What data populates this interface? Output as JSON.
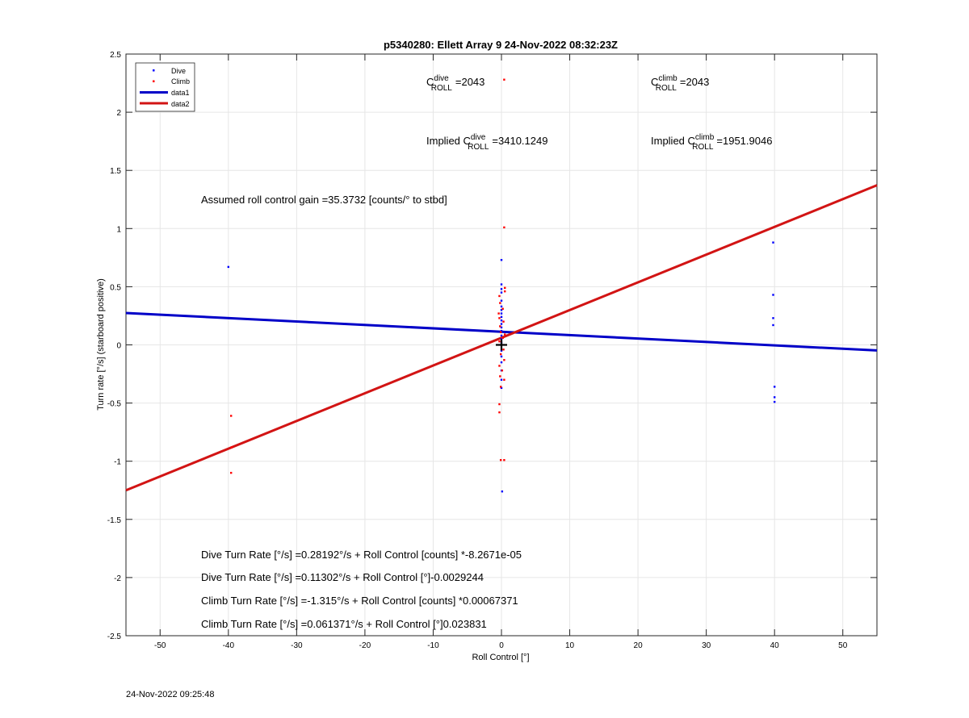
{
  "figure": {
    "timestamp": "24-Nov-2022 09:25:48"
  },
  "chart_data": {
    "type": "scatter",
    "title": "p5340280: Ellett Array 9 24-Nov-2022 08:32:23Z",
    "xlabel": "Roll Control [°]",
    "ylabel": "Turn rate [°/s] (starboard positive)",
    "xlim": [
      -55,
      55
    ],
    "ylim": [
      -2.5,
      2.5
    ],
    "xticks": [
      "-50",
      "-40",
      "-30",
      "-20",
      "-10",
      "0",
      "10",
      "20",
      "30",
      "40",
      "50"
    ],
    "xtick_values": [
      -50,
      -40,
      -30,
      -20,
      -10,
      0,
      10,
      20,
      30,
      40,
      50
    ],
    "yticks": [
      "-2.5",
      "-2",
      "-1.5",
      "-1",
      "-0.5",
      "0",
      "0.5",
      "1",
      "1.5",
      "2",
      "2.5"
    ],
    "ytick_values": [
      -2.5,
      -2,
      -1.5,
      -1,
      -0.5,
      0,
      0.5,
      1,
      1.5,
      2,
      2.5
    ],
    "grid": true,
    "legend_position": "top-left",
    "series": [
      {
        "name": "Dive",
        "kind": "points",
        "color": "#0000ff",
        "points": [
          [
            -40,
            0.67
          ],
          [
            0,
            0.73
          ],
          [
            0,
            0.52
          ],
          [
            0,
            0.48
          ],
          [
            0,
            0.45
          ],
          [
            0,
            0.38
          ],
          [
            0,
            0.33
          ],
          [
            0,
            0.3
          ],
          [
            0,
            0.27
          ],
          [
            0,
            0.24
          ],
          [
            0,
            0.21
          ],
          [
            0,
            0.18
          ],
          [
            0,
            0.15
          ],
          [
            0,
            0.12
          ],
          [
            0,
            0.08
          ],
          [
            0,
            0.05
          ],
          [
            0,
            0.02
          ],
          [
            0,
            -0.05
          ],
          [
            0,
            -0.1
          ],
          [
            0,
            -0.15
          ],
          [
            0,
            -0.22
          ],
          [
            0,
            -0.3
          ],
          [
            0,
            -0.37
          ],
          [
            0.1,
            -1.26
          ],
          [
            39.8,
            0.88
          ],
          [
            39.8,
            0.43
          ],
          [
            39.8,
            0.23
          ],
          [
            39.8,
            0.17
          ],
          [
            40,
            -0.36
          ],
          [
            40,
            -0.45
          ],
          [
            40,
            -0.49
          ]
        ]
      },
      {
        "name": "Climb",
        "kind": "points",
        "color": "#ff0000",
        "points": [
          [
            0.4,
            2.28
          ],
          [
            0.4,
            1.01
          ],
          [
            0.5,
            0.49
          ],
          [
            0.5,
            0.46
          ],
          [
            -0.3,
            0.42
          ],
          [
            -0.2,
            0.36
          ],
          [
            0.2,
            0.31
          ],
          [
            -0.4,
            0.27
          ],
          [
            -0.3,
            0.23
          ],
          [
            0.3,
            0.2
          ],
          [
            -0.2,
            0.16
          ],
          [
            -0.1,
            0.11
          ],
          [
            0.5,
            0.09
          ],
          [
            0.2,
            0.06
          ],
          [
            -0.3,
            0.03
          ],
          [
            0.3,
            -0.04
          ],
          [
            -0.1,
            -0.08
          ],
          [
            0.4,
            -0.13
          ],
          [
            -0.3,
            -0.18
          ],
          [
            0.1,
            -0.22
          ],
          [
            -0.2,
            -0.27
          ],
          [
            0.4,
            -0.3
          ],
          [
            -0.1,
            -0.36
          ],
          [
            -0.3,
            -0.51
          ],
          [
            -0.3,
            -0.58
          ],
          [
            -0.1,
            -0.99
          ],
          [
            0.4,
            -0.99
          ],
          [
            -39.6,
            -0.61
          ],
          [
            -39.5,
            -0.88
          ],
          [
            -39.6,
            -1.1
          ]
        ]
      },
      {
        "name": "data1",
        "kind": "line",
        "color": "#0000c8",
        "points": [
          [
            -55,
            0.274
          ],
          [
            55,
            -0.048
          ]
        ]
      },
      {
        "name": "data2",
        "kind": "line",
        "color": "#d21414",
        "points": [
          [
            -55,
            -1.25
          ],
          [
            55,
            1.372
          ]
        ]
      }
    ],
    "marker": {
      "x": 0,
      "y": 0
    },
    "annotations": {
      "c_dive": {
        "base": "C",
        "sup": "dive",
        "sub": "ROLL",
        "value": "=2043"
      },
      "c_climb": {
        "base": "C",
        "sup": "climb",
        "sub": "ROLL",
        "value": "=2043"
      },
      "implied_dive": {
        "prefix": "Implied ",
        "base": "C",
        "sup": "dive",
        "sub": "ROLL",
        "value": "=3410.1249"
      },
      "implied_climb": {
        "prefix": "Implied ",
        "base": "C",
        "sup": "climb",
        "sub": "ROLL",
        "value": "=1951.9046"
      },
      "gain": "Assumed roll control gain =35.3732 [counts/° to stbd]",
      "fits": [
        "Dive Turn Rate [°/s] =0.28192°/s + Roll Control [counts] *-8.2671e-05",
        "Dive Turn Rate [°/s] =0.11302°/s + Roll Control [°]-0.0029244",
        "Climb Turn Rate [°/s] =-1.315°/s + Roll Control [counts] *0.00067371",
        "Climb Turn Rate [°/s] =0.061371°/s + Roll Control [°]0.023831"
      ]
    }
  }
}
